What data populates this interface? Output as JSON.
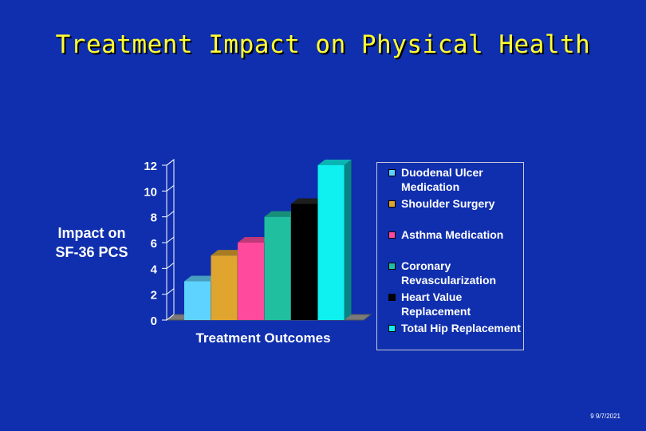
{
  "slide": {
    "title": "Treatment Impact on Physical Health",
    "ylabel_line1": "Impact on",
    "ylabel_line2": "SF-36 PCS",
    "footer": "9 9/7/2021"
  },
  "chart_data": {
    "type": "bar",
    "title": "",
    "xlabel": "Treatment Outcomes",
    "ylabel": "Impact on SF-36 PCS",
    "ylim": [
      0,
      12
    ],
    "yticks": [
      0,
      2,
      4,
      6,
      8,
      10,
      12
    ],
    "grid": false,
    "three_d": true,
    "legend_position": "right",
    "series": [
      {
        "name": "Duodenal Ulcer Medication",
        "value": 3,
        "color": "#5fd3ff"
      },
      {
        "name": "Shoulder Surgery",
        "value": 5,
        "color": "#e0a52e"
      },
      {
        "name": "Asthma Medication",
        "value": 6,
        "color": "#ff4a9e"
      },
      {
        "name": "Coronary Revascularization",
        "value": 8,
        "color": "#1fbfa0"
      },
      {
        "name": "Heart Value Replacement",
        "value": 9,
        "color": "#000000"
      },
      {
        "name": "Total Hip Replacement",
        "value": 12,
        "color": "#0ff0f0"
      }
    ]
  }
}
